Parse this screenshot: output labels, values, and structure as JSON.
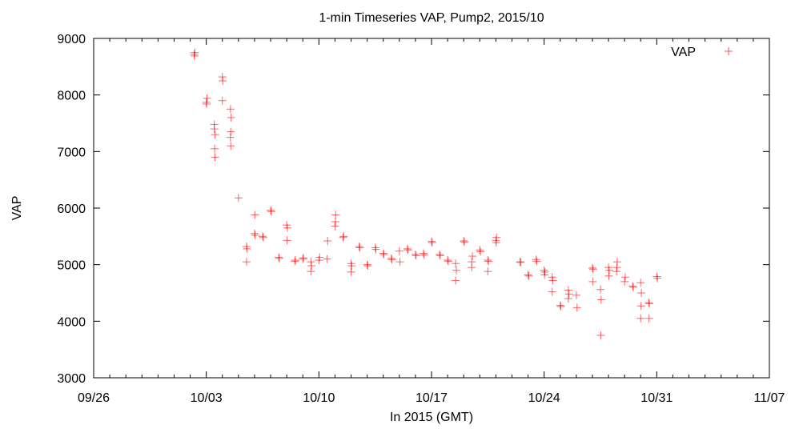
{
  "chart_data": {
    "type": "scatter",
    "title": "1-min Timeseries VAP, Pump2, 2015/10",
    "xlabel": "In 2015 (GMT)",
    "ylabel": "VAP",
    "x_ticks": [
      "09/26",
      "10/03",
      "10/10",
      "10/17",
      "10/24",
      "10/31",
      "11/07"
    ],
    "x_tick_dates": [
      "2015-09-26",
      "2015-10-03",
      "2015-10-10",
      "2015-10-17",
      "2015-10-24",
      "2015-10-31",
      "2015-11-07"
    ],
    "xlim": [
      "2015-09-26",
      "2015-11-07"
    ],
    "ylim": [
      3000,
      9000
    ],
    "y_ticks": [
      3000,
      4000,
      5000,
      6000,
      7000,
      8000,
      9000
    ],
    "grid": false,
    "legend": {
      "position": "top-right"
    },
    "series": [
      {
        "name": "VAP",
        "color": "#ff0000",
        "marker": "plus",
        "points": [
          {
            "x": "2015-10-02 06:00",
            "y": 8720
          },
          {
            "x": "2015-10-02 07:00",
            "y": 8750
          },
          {
            "x": "2015-10-02 06:30",
            "y": 8690
          },
          {
            "x": "2015-10-03 00:00",
            "y": 7870
          },
          {
            "x": "2015-10-03 01:00",
            "y": 7940
          },
          {
            "x": "2015-10-03 00:30",
            "y": 7840
          },
          {
            "x": "2015-10-03 12:00",
            "y": 7480
          },
          {
            "x": "2015-10-03 13:00",
            "y": 7300
          },
          {
            "x": "2015-10-03 12:30",
            "y": 7050
          },
          {
            "x": "2015-10-03 13:00",
            "y": 6900
          },
          {
            "x": "2015-10-03 12:00",
            "y": 7400
          },
          {
            "x": "2015-10-04 00:00",
            "y": 8320
          },
          {
            "x": "2015-10-04 00:30",
            "y": 8250
          },
          {
            "x": "2015-10-04 00:00",
            "y": 7900
          },
          {
            "x": "2015-10-04 12:00",
            "y": 7750
          },
          {
            "x": "2015-10-04 13:00",
            "y": 7600
          },
          {
            "x": "2015-10-04 12:30",
            "y": 7350
          },
          {
            "x": "2015-10-04 12:00",
            "y": 7250
          },
          {
            "x": "2015-10-04 12:30",
            "y": 7100
          },
          {
            "x": "2015-10-05 00:00",
            "y": 6180
          },
          {
            "x": "2015-10-05 12:00",
            "y": 5320
          },
          {
            "x": "2015-10-05 12:30",
            "y": 5280
          },
          {
            "x": "2015-10-05 12:00",
            "y": 5050
          },
          {
            "x": "2015-10-06 00:00",
            "y": 5550
          },
          {
            "x": "2015-10-06 01:00",
            "y": 5520
          },
          {
            "x": "2015-10-06 00:30",
            "y": 5880
          },
          {
            "x": "2015-10-06 12:00",
            "y": 5500
          },
          {
            "x": "2015-10-06 13:00",
            "y": 5480
          },
          {
            "x": "2015-10-07 00:00",
            "y": 5960
          },
          {
            "x": "2015-10-07 01:00",
            "y": 5940
          },
          {
            "x": "2015-10-07 12:00",
            "y": 5130
          },
          {
            "x": "2015-10-07 13:00",
            "y": 5110
          },
          {
            "x": "2015-10-08 00:00",
            "y": 5700
          },
          {
            "x": "2015-10-08 01:00",
            "y": 5650
          },
          {
            "x": "2015-10-08 00:30",
            "y": 5430
          },
          {
            "x": "2015-10-08 12:00",
            "y": 5060
          },
          {
            "x": "2015-10-08 13:00",
            "y": 5080
          },
          {
            "x": "2015-10-09 00:00",
            "y": 5100
          },
          {
            "x": "2015-10-09 01:00",
            "y": 5120
          },
          {
            "x": "2015-10-09 12:00",
            "y": 5050
          },
          {
            "x": "2015-10-09 13:00",
            "y": 4980
          },
          {
            "x": "2015-10-09 12:00",
            "y": 4880
          },
          {
            "x": "2015-10-10 00:00",
            "y": 5080
          },
          {
            "x": "2015-10-10 01:00",
            "y": 5130
          },
          {
            "x": "2015-10-10 12:00",
            "y": 5100
          },
          {
            "x": "2015-10-10 13:00",
            "y": 5420
          },
          {
            "x": "2015-10-11 00:00",
            "y": 5680
          },
          {
            "x": "2015-10-11 01:00",
            "y": 5880
          },
          {
            "x": "2015-10-11 00:30",
            "y": 5760
          },
          {
            "x": "2015-10-11 12:00",
            "y": 5480
          },
          {
            "x": "2015-10-11 13:00",
            "y": 5500
          },
          {
            "x": "2015-10-12 00:00",
            "y": 5020
          },
          {
            "x": "2015-10-12 01:00",
            "y": 4980
          },
          {
            "x": "2015-10-12 00:00",
            "y": 4870
          },
          {
            "x": "2015-10-12 12:00",
            "y": 5320
          },
          {
            "x": "2015-10-12 13:00",
            "y": 5300
          },
          {
            "x": "2015-10-13 00:00",
            "y": 5000
          },
          {
            "x": "2015-10-13 01:00",
            "y": 4980
          },
          {
            "x": "2015-10-13 12:00",
            "y": 5300
          },
          {
            "x": "2015-10-13 13:00",
            "y": 5270
          },
          {
            "x": "2015-10-14 00:00",
            "y": 5200
          },
          {
            "x": "2015-10-14 01:00",
            "y": 5180
          },
          {
            "x": "2015-10-14 12:00",
            "y": 5110
          },
          {
            "x": "2015-10-14 13:00",
            "y": 5090
          },
          {
            "x": "2015-10-15 00:00",
            "y": 5240
          },
          {
            "x": "2015-10-15 01:00",
            "y": 5050
          },
          {
            "x": "2015-10-15 12:00",
            "y": 5280
          },
          {
            "x": "2015-10-15 13:00",
            "y": 5260
          },
          {
            "x": "2015-10-16 00:00",
            "y": 5180
          },
          {
            "x": "2015-10-16 01:00",
            "y": 5160
          },
          {
            "x": "2015-10-16 12:00",
            "y": 5200
          },
          {
            "x": "2015-10-16 13:00",
            "y": 5170
          },
          {
            "x": "2015-10-17 00:00",
            "y": 5410
          },
          {
            "x": "2015-10-17 01:00",
            "y": 5390
          },
          {
            "x": "2015-10-17 12:00",
            "y": 5180
          },
          {
            "x": "2015-10-17 13:00",
            "y": 5160
          },
          {
            "x": "2015-10-18 00:00",
            "y": 5080
          },
          {
            "x": "2015-10-18 01:00",
            "y": 5060
          },
          {
            "x": "2015-10-18 12:00",
            "y": 5020
          },
          {
            "x": "2015-10-18 13:00",
            "y": 4900
          },
          {
            "x": "2015-10-18 12:00",
            "y": 4720
          },
          {
            "x": "2015-10-19 00:00",
            "y": 5420
          },
          {
            "x": "2015-10-19 01:00",
            "y": 5400
          },
          {
            "x": "2015-10-19 12:00",
            "y": 5050
          },
          {
            "x": "2015-10-19 13:00",
            "y": 5150
          },
          {
            "x": "2015-10-19 12:00",
            "y": 4950
          },
          {
            "x": "2015-10-20 00:00",
            "y": 5260
          },
          {
            "x": "2015-10-20 01:00",
            "y": 5230
          },
          {
            "x": "2015-10-20 12:00",
            "y": 5080
          },
          {
            "x": "2015-10-20 13:00",
            "y": 5060
          },
          {
            "x": "2015-10-20 12:00",
            "y": 4880
          },
          {
            "x": "2015-10-21 00:00",
            "y": 5430
          },
          {
            "x": "2015-10-21 01:00",
            "y": 5480
          },
          {
            "x": "2015-10-21 00:30",
            "y": 5390
          },
          {
            "x": "2015-10-22 12:00",
            "y": 5050
          },
          {
            "x": "2015-10-22 13:00",
            "y": 5040
          },
          {
            "x": "2015-10-23 00:00",
            "y": 4820
          },
          {
            "x": "2015-10-23 01:00",
            "y": 4800
          },
          {
            "x": "2015-10-23 12:00",
            "y": 5090
          },
          {
            "x": "2015-10-23 13:00",
            "y": 5060
          },
          {
            "x": "2015-10-24 00:00",
            "y": 4900
          },
          {
            "x": "2015-10-24 01:00",
            "y": 4870
          },
          {
            "x": "2015-10-24 00:30",
            "y": 4820
          },
          {
            "x": "2015-10-24 12:00",
            "y": 4780
          },
          {
            "x": "2015-10-24 13:00",
            "y": 4720
          },
          {
            "x": "2015-10-24 12:00",
            "y": 4520
          },
          {
            "x": "2015-10-25 00:00",
            "y": 4280
          },
          {
            "x": "2015-10-25 01:00",
            "y": 4260
          },
          {
            "x": "2015-10-25 12:00",
            "y": 4550
          },
          {
            "x": "2015-10-25 13:00",
            "y": 4480
          },
          {
            "x": "2015-10-25 12:00",
            "y": 4400
          },
          {
            "x": "2015-10-26 00:00",
            "y": 4460
          },
          {
            "x": "2015-10-26 01:00",
            "y": 4240
          },
          {
            "x": "2015-10-27 00:00",
            "y": 4940
          },
          {
            "x": "2015-10-27 01:00",
            "y": 4920
          },
          {
            "x": "2015-10-27 00:30",
            "y": 4700
          },
          {
            "x": "2015-10-27 12:00",
            "y": 4560
          },
          {
            "x": "2015-10-27 13:00",
            "y": 4380
          },
          {
            "x": "2015-10-27 12:30",
            "y": 3750
          },
          {
            "x": "2015-10-28 00:00",
            "y": 4950
          },
          {
            "x": "2015-10-28 01:00",
            "y": 4900
          },
          {
            "x": "2015-10-28 00:30",
            "y": 4800
          },
          {
            "x": "2015-10-28 12:00",
            "y": 4880
          },
          {
            "x": "2015-10-28 13:00",
            "y": 5050
          },
          {
            "x": "2015-10-28 12:30",
            "y": 4950
          },
          {
            "x": "2015-10-29 00:00",
            "y": 4700
          },
          {
            "x": "2015-10-29 01:00",
            "y": 4780
          },
          {
            "x": "2015-10-29 12:00",
            "y": 4620
          },
          {
            "x": "2015-10-29 13:00",
            "y": 4600
          },
          {
            "x": "2015-10-30 00:00",
            "y": 4680
          },
          {
            "x": "2015-10-30 01:00",
            "y": 4500
          },
          {
            "x": "2015-10-30 00:30",
            "y": 4270
          },
          {
            "x": "2015-10-30 00:00",
            "y": 4050
          },
          {
            "x": "2015-10-30 12:00",
            "y": 4330
          },
          {
            "x": "2015-10-30 13:00",
            "y": 4310
          },
          {
            "x": "2015-10-30 12:30",
            "y": 4050
          },
          {
            "x": "2015-10-31 00:00",
            "y": 4790
          },
          {
            "x": "2015-10-31 01:00",
            "y": 4760
          }
        ]
      }
    ]
  }
}
